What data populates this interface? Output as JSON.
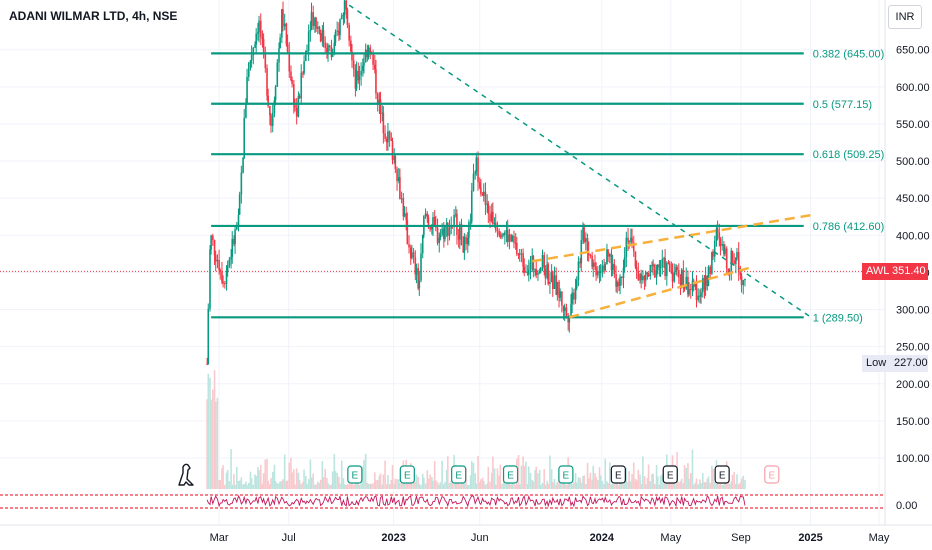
{
  "header": {
    "title": "ADANI WILMAR LTD, 4h, NSE",
    "currency": "INR"
  },
  "price_tag": {
    "symbol": "AWL",
    "value": "351.40"
  },
  "low_tag": {
    "label": "Low",
    "value": "227.00"
  },
  "colors": {
    "up": "#089981",
    "down": "#f23645",
    "fib": "#089981",
    "trend": "#089981",
    "channel": "#f7b03c",
    "text": "#131722",
    "grid": "#f0f3fa"
  },
  "chart_data": {
    "type": "candlestick",
    "ylim": [
      0,
      700
    ],
    "y_ticks": [
      650,
      600,
      550,
      500,
      450,
      400,
      350,
      300,
      250,
      200,
      150,
      100
    ],
    "y_tick_labels": [
      "650.00",
      "600.00",
      "550.00",
      "500.00",
      "450.00",
      "400.00",
      "350.00",
      "300.00",
      "250.00",
      "200.00",
      "150.00",
      "100.00"
    ],
    "x_tick_labels": [
      "Mar",
      "Jul",
      "2023",
      "Jun",
      "2024",
      "May",
      "Sep",
      "2025",
      "May"
    ],
    "indicator_tick_label": "0.00",
    "fib_levels": [
      {
        "label": "0.382 (645.00)",
        "value": 645.0
      },
      {
        "label": "0.5 (577.15)",
        "value": 577.15
      },
      {
        "label": "0.618 (509.25)",
        "value": 509.25
      },
      {
        "label": "0.786 (412.60)",
        "value": 412.6
      },
      {
        "label": "1 (289.50)",
        "value": 289.5
      }
    ],
    "last_price": 351.4,
    "low": 227.0,
    "price_path": [
      [
        "2022-02-08",
        227
      ],
      [
        "2022-02-14",
        400
      ],
      [
        "2022-03-10",
        340
      ],
      [
        "2022-04-05",
        420
      ],
      [
        "2022-04-20",
        620
      ],
      [
        "2022-05-10",
        690
      ],
      [
        "2022-06-01",
        550
      ],
      [
        "2022-06-20",
        700
      ],
      [
        "2022-07-15",
        560
      ],
      [
        "2022-08-10",
        700
      ],
      [
        "2022-09-15",
        640
      ],
      [
        "2022-10-10",
        720
      ],
      [
        "2022-10-25",
        600
      ],
      [
        "2022-11-20",
        660
      ],
      [
        "2022-12-10",
        560
      ],
      [
        "2023-01-05",
        500
      ],
      [
        "2023-01-25",
        400
      ],
      [
        "2023-02-15",
        330
      ],
      [
        "2023-02-25",
        430
      ],
      [
        "2023-03-20",
        400
      ],
      [
        "2023-04-20",
        420
      ],
      [
        "2023-05-10",
        375
      ],
      [
        "2023-05-25",
        500
      ],
      [
        "2023-06-15",
        430
      ],
      [
        "2023-07-20",
        400
      ],
      [
        "2023-08-20",
        360
      ],
      [
        "2023-09-20",
        360
      ],
      [
        "2023-10-20",
        320
      ],
      [
        "2023-11-01",
        290
      ],
      [
        "2023-11-15",
        330
      ],
      [
        "2023-12-01",
        405
      ],
      [
        "2023-12-20",
        355
      ],
      [
        "2024-01-15",
        370
      ],
      [
        "2024-02-01",
        330
      ],
      [
        "2024-02-15",
        405
      ],
      [
        "2024-03-10",
        335
      ],
      [
        "2024-04-10",
        360
      ],
      [
        "2024-05-10",
        350
      ],
      [
        "2024-06-10",
        325
      ],
      [
        "2024-07-01",
        330
      ],
      [
        "2024-07-20",
        400
      ],
      [
        "2024-08-10",
        360
      ],
      [
        "2024-08-25",
        375
      ],
      [
        "2024-09-01",
        345
      ],
      [
        "2024-09-08",
        351.4
      ]
    ],
    "trend_line": {
      "from": [
        "2022-10-15",
        710
      ],
      "to": [
        "2025-01-01",
        290
      ]
    },
    "channel_upper": {
      "from": [
        "2023-09-01",
        365
      ],
      "to": [
        "2025-01-01",
        427
      ]
    },
    "channel_lower": {
      "from": [
        "2023-11-05",
        289.5
      ],
      "to": [
        "2024-09-15",
        356
      ]
    },
    "earnings_markers": [
      {
        "date": "2022-10-25",
        "label": "E",
        "status": "past"
      },
      {
        "date": "2023-01-25",
        "label": "E",
        "status": "past"
      },
      {
        "date": "2023-04-25",
        "label": "E",
        "status": "past"
      },
      {
        "date": "2023-07-25",
        "label": "E",
        "status": "past"
      },
      {
        "date": "2023-10-30",
        "label": "E",
        "status": "past"
      },
      {
        "date": "2024-01-30",
        "label": "E",
        "status": "reported"
      },
      {
        "date": "2024-04-30",
        "label": "E",
        "status": "reported"
      },
      {
        "date": "2024-07-30",
        "label": "E",
        "status": "reported"
      },
      {
        "date": "2024-10-25",
        "label": "E",
        "status": "upcoming"
      }
    ]
  }
}
